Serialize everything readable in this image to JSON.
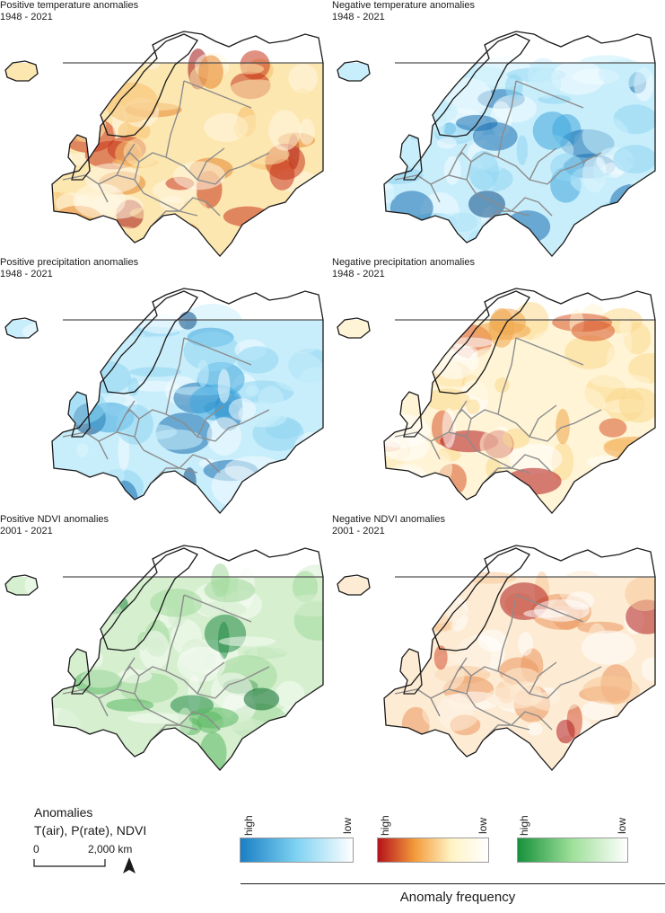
{
  "panels": [
    {
      "title": "Positive temperature anomalies",
      "period": "1948 - 2021",
      "colormap": "temp_pos",
      "palette": [
        "#fff8e6",
        "#fde7b0",
        "#f6bf6e",
        "#e6852e",
        "#c9361b",
        "#a31212"
      ]
    },
    {
      "title": "Negative temperature anomalies",
      "period": "1948 - 2021",
      "colormap": "temp_neg",
      "palette": [
        "#f2fbff",
        "#c9eefb",
        "#8fd6f2",
        "#3fa8df",
        "#1a6fb0",
        "#0e4f86"
      ]
    },
    {
      "title": "Positive precipitation anomalies",
      "period": "1948 - 2021",
      "colormap": "prec_pos",
      "palette": [
        "#f2fbff",
        "#c9eefb",
        "#8fd6f2",
        "#3fa8df",
        "#1a6fb0",
        "#0e4f86"
      ]
    },
    {
      "title": "Negative precipitation anomalies",
      "period": "1948 - 2021",
      "colormap": "prec_neg",
      "palette": [
        "#ffffff",
        "#fff4d6",
        "#fcd98e",
        "#f1a64a",
        "#d9572a",
        "#b3161c"
      ]
    },
    {
      "title": "Positive NDVI anomalies",
      "period": "2001 - 2021",
      "colormap": "ndvi_pos",
      "palette": [
        "#f7fcf5",
        "#d5efcf",
        "#a1d99b",
        "#5ab862",
        "#238b45",
        "#0a6b2c"
      ]
    },
    {
      "title": "Negative NDVI anomalies",
      "period": "2001 - 2021",
      "colormap": "ndvi_neg",
      "palette": [
        "#ffffff",
        "#fdebd3",
        "#f7c99a",
        "#eb955c",
        "#d4502e",
        "#b01d1d"
      ]
    }
  ],
  "legend": {
    "title_line1": "Anomalies",
    "title_line2": "T(air), P(rate), NDVI",
    "scale_min": "0",
    "scale_max": "2,000 km",
    "north_arrow": "north-arrow-icon",
    "ramps": [
      {
        "high": "high",
        "low": "low",
        "colors": [
          "#1a7fc4",
          "#7fd2f2",
          "#ffffff"
        ]
      },
      {
        "high": "high",
        "low": "low",
        "colors": [
          "#b5121b",
          "#f39b3b",
          "#fff3c4",
          "#ffffff"
        ]
      },
      {
        "high": "high",
        "low": "low",
        "colors": [
          "#16913c",
          "#9fe09a",
          "#ffffff"
        ]
      }
    ],
    "frequency_label": "Anomaly frequency"
  },
  "colors": {
    "coast": "#1a1a1a",
    "borders": "#8c8c8c",
    "domain_edge": "#555555"
  }
}
